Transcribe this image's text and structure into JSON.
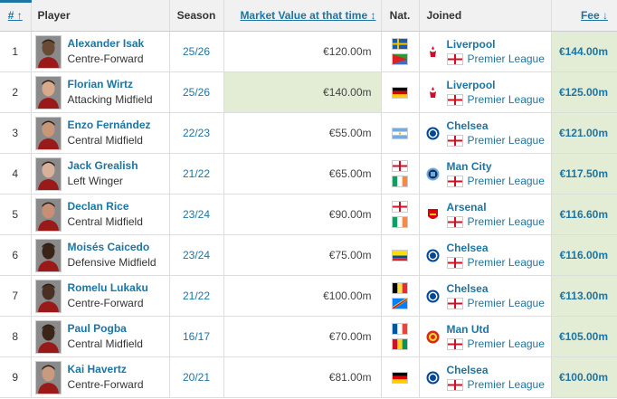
{
  "headers": {
    "rank": "#",
    "rank_sort": "↑",
    "player": "Player",
    "season": "Season",
    "market_value": "Market Value at that time",
    "mv_sort": "↕",
    "nat": "Nat.",
    "joined": "Joined",
    "fee": "Fee",
    "fee_sort": "↓"
  },
  "rows": [
    {
      "rank": "1",
      "name": "Alexander Isak",
      "position": "Centre-Forward",
      "season": "25/26",
      "market_value": "€120.00m",
      "mv_highlight": false,
      "flags": [
        "sweden",
        "eritrea"
      ],
      "club": "Liverpool",
      "club_crest": "liverpool-crest",
      "league": "Premier League",
      "fee": "€144.00m",
      "skin": "#6b4a33"
    },
    {
      "rank": "2",
      "name": "Florian Wirtz",
      "position": "Attacking Midfield",
      "season": "25/26",
      "market_value": "€140.00m",
      "mv_highlight": true,
      "flags": [
        "germany"
      ],
      "club": "Liverpool",
      "club_crest": "liverpool-crest",
      "league": "Premier League",
      "fee": "€125.00m",
      "skin": "#d8a98a"
    },
    {
      "rank": "3",
      "name": "Enzo Fernández",
      "position": "Central Midfield",
      "season": "22/23",
      "market_value": "€55.00m",
      "mv_highlight": false,
      "flags": [
        "argentina"
      ],
      "club": "Chelsea",
      "club_crest": "chelsea-crest",
      "league": "Premier League",
      "fee": "€121.00m",
      "skin": "#c9967a"
    },
    {
      "rank": "4",
      "name": "Jack Grealish",
      "position": "Left Winger",
      "season": "21/22",
      "market_value": "€65.00m",
      "mv_highlight": false,
      "flags": [
        "england",
        "ireland"
      ],
      "club": "Man City",
      "club_crest": "mancity-crest",
      "league": "Premier League",
      "fee": "€117.50m",
      "skin": "#d9b09a"
    },
    {
      "rank": "5",
      "name": "Declan Rice",
      "position": "Central Midfield",
      "season": "23/24",
      "market_value": "€90.00m",
      "mv_highlight": false,
      "flags": [
        "england",
        "ireland"
      ],
      "club": "Arsenal",
      "club_crest": "arsenal-crest",
      "league": "Premier League",
      "fee": "€116.60m",
      "skin": "#c98f75"
    },
    {
      "rank": "6",
      "name": "Moisés Caicedo",
      "position": "Defensive Midfield",
      "season": "23/24",
      "market_value": "€75.00m",
      "mv_highlight": false,
      "flags": [
        "ecuador"
      ],
      "club": "Chelsea",
      "club_crest": "chelsea-crest",
      "league": "Premier League",
      "fee": "€116.00m",
      "skin": "#3a2418"
    },
    {
      "rank": "7",
      "name": "Romelu Lukaku",
      "position": "Centre-Forward",
      "season": "21/22",
      "market_value": "€100.00m",
      "mv_highlight": false,
      "flags": [
        "belgium",
        "drcongo"
      ],
      "club": "Chelsea",
      "club_crest": "chelsea-crest",
      "league": "Premier League",
      "fee": "€113.00m",
      "skin": "#4a3022"
    },
    {
      "rank": "8",
      "name": "Paul Pogba",
      "position": "Central Midfield",
      "season": "16/17",
      "market_value": "€70.00m",
      "mv_highlight": false,
      "flags": [
        "france",
        "guinea"
      ],
      "club": "Man Utd",
      "club_crest": "manutd-crest",
      "league": "Premier League",
      "fee": "€105.00m",
      "skin": "#3b2519"
    },
    {
      "rank": "9",
      "name": "Kai Havertz",
      "position": "Centre-Forward",
      "season": "20/21",
      "market_value": "€81.00m",
      "mv_highlight": false,
      "flags": [
        "germany"
      ],
      "club": "Chelsea",
      "club_crest": "chelsea-crest",
      "league": "Premier League",
      "fee": "€100.00m",
      "skin": "#c99a7d"
    }
  ],
  "colors": {
    "link": "#1d75a3",
    "highlight": "#e3ecd4",
    "header_bg": "#f1f1f1"
  }
}
